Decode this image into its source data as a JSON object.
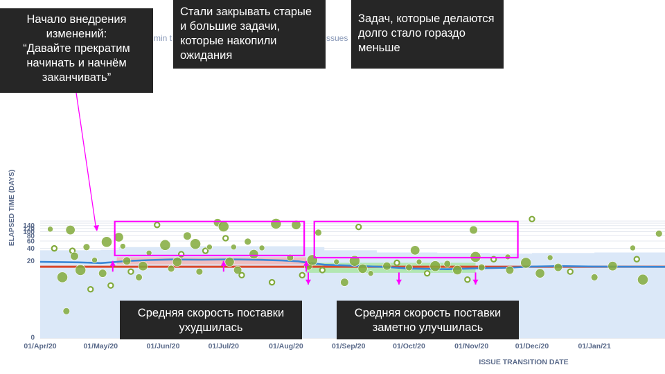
{
  "chart_data": {
    "type": "scatter",
    "title": "",
    "xlabel": "ISSUE TRANSITION DATE",
    "ylabel": "ELAPSED TIME (DAYS)",
    "y_scale": "log",
    "ylim": [
      0,
      180
    ],
    "xlim": [
      "2020-04-01",
      "2021-02-05"
    ],
    "x_ticks": [
      "01/Apr/20",
      "01/May/20",
      "01/Jun/20",
      "01/Jul/20",
      "01/Aug/20",
      "01/Sep/20",
      "01/Oct/20",
      "01/Nov/20",
      "01/Dec/20",
      "01/Jan/21"
    ],
    "y_ticks": [
      "0",
      "20",
      "40",
      "60",
      "80",
      "100",
      "120",
      "140"
    ],
    "grid": true,
    "header_fragments": [
      "min t",
      "ssues"
    ],
    "series": [
      {
        "kind": "average_line",
        "color": "#d9472b",
        "value": 14.5
      },
      {
        "kind": "rolling_average",
        "color": "#3a87d6",
        "points": [
          [
            "2020-04-01",
            19
          ],
          [
            "2020-04-20",
            18.5
          ],
          [
            "2020-05-01",
            17.8
          ],
          [
            "2020-05-07",
            18.6
          ],
          [
            "2020-05-15",
            20
          ],
          [
            "2020-05-25",
            21
          ],
          [
            "2020-06-05",
            21.6
          ],
          [
            "2020-06-20",
            21.4
          ],
          [
            "2020-07-05",
            21.8
          ],
          [
            "2020-07-20",
            21.2
          ],
          [
            "2020-07-30",
            20.5
          ],
          [
            "2020-08-07",
            19.6
          ],
          [
            "2020-08-13",
            17.8
          ],
          [
            "2020-08-20",
            16.2
          ],
          [
            "2020-09-05",
            15.2
          ],
          [
            "2020-09-20",
            14.2
          ],
          [
            "2020-10-01",
            13.1
          ],
          [
            "2020-10-20",
            12.6
          ],
          [
            "2020-11-05",
            13.3
          ],
          [
            "2020-11-20",
            13.8
          ],
          [
            "2020-12-01",
            14.6
          ],
          [
            "2020-12-15",
            15
          ],
          [
            "2021-01-01",
            14.6
          ],
          [
            "2021-02-05",
            14.4
          ]
        ]
      },
      {
        "kind": "std_dev_band",
        "color": "#dbe8f8",
        "points": [
          [
            "2020-04-01",
            0,
            36
          ],
          [
            "2020-05-01",
            0,
            37
          ],
          [
            "2020-05-10",
            0,
            43
          ],
          [
            "2020-06-15",
            0,
            45
          ],
          [
            "2020-07-20",
            0,
            45
          ],
          [
            "2020-08-10",
            0,
            43
          ],
          [
            "2020-08-20",
            0,
            36
          ],
          [
            "2020-09-15",
            0,
            32
          ],
          [
            "2020-10-15",
            0,
            31
          ],
          [
            "2020-11-10",
            0,
            30
          ],
          [
            "2020-12-01",
            0,
            31
          ],
          [
            "2021-01-01",
            0,
            32
          ],
          [
            "2021-02-05",
            0,
            33
          ]
        ]
      },
      {
        "kind": "issues",
        "color": "#82aa3c",
        "points": [
          [
            "2020-04-06",
            115
          ],
          [
            "2020-04-08",
            40
          ],
          [
            "2020-04-12",
            8
          ],
          [
            "2020-04-14",
            1
          ],
          [
            "2020-04-16",
            110
          ],
          [
            "2020-04-17",
            35
          ],
          [
            "2020-04-18",
            26
          ],
          [
            "2020-04-21",
            12
          ],
          [
            "2020-04-24",
            43
          ],
          [
            "2020-04-26",
            4
          ],
          [
            "2020-04-28",
            21
          ],
          [
            "2020-05-02",
            10
          ],
          [
            "2020-05-04",
            57
          ],
          [
            "2020-05-06",
            5
          ],
          [
            "2020-05-10",
            74
          ],
          [
            "2020-05-12",
            45
          ],
          [
            "2020-05-14",
            20
          ],
          [
            "2020-05-16",
            11
          ],
          [
            "2020-05-20",
            8
          ],
          [
            "2020-05-22",
            15
          ],
          [
            "2020-05-25",
            31
          ],
          [
            "2020-05-29",
            145
          ],
          [
            "2020-06-02",
            48
          ],
          [
            "2020-06-05",
            13
          ],
          [
            "2020-06-08",
            19
          ],
          [
            "2020-06-10",
            29
          ],
          [
            "2020-06-13",
            79
          ],
          [
            "2020-06-17",
            51
          ],
          [
            "2020-06-19",
            11
          ],
          [
            "2020-06-22",
            35
          ],
          [
            "2020-06-24",
            43
          ],
          [
            "2020-06-28",
            165
          ],
          [
            "2020-07-01",
            133
          ],
          [
            "2020-07-02",
            70
          ],
          [
            "2020-07-04",
            19
          ],
          [
            "2020-07-06",
            43
          ],
          [
            "2020-07-08",
            12
          ],
          [
            "2020-07-10",
            9
          ],
          [
            "2020-07-13",
            58
          ],
          [
            "2020-07-16",
            29
          ],
          [
            "2020-07-20",
            41
          ],
          [
            "2020-07-25",
            6
          ],
          [
            "2020-07-27",
            155
          ],
          [
            "2020-08-03",
            24
          ],
          [
            "2020-08-06",
            145
          ],
          [
            "2020-08-09",
            9
          ],
          [
            "2020-08-12",
            15
          ],
          [
            "2020-08-14",
            21
          ],
          [
            "2020-08-17",
            95
          ],
          [
            "2020-08-19",
            12
          ],
          [
            "2020-08-26",
            19
          ],
          [
            "2020-08-30",
            6
          ],
          [
            "2020-09-04",
            20
          ],
          [
            "2020-09-06",
            130
          ],
          [
            "2020-09-08",
            13
          ],
          [
            "2020-09-12",
            10
          ],
          [
            "2020-09-20",
            15
          ],
          [
            "2020-09-25",
            18
          ],
          [
            "2020-10-01",
            14
          ],
          [
            "2020-10-04",
            36
          ],
          [
            "2020-10-06",
            19
          ],
          [
            "2020-10-10",
            10
          ],
          [
            "2020-10-14",
            15
          ],
          [
            "2020-10-20",
            17
          ],
          [
            "2020-10-25",
            12
          ],
          [
            "2020-10-30",
            7
          ],
          [
            "2020-11-02",
            110
          ],
          [
            "2020-11-03",
            25
          ],
          [
            "2020-11-06",
            14
          ],
          [
            "2020-11-12",
            22
          ],
          [
            "2020-11-19",
            25
          ],
          [
            "2020-11-20",
            12
          ],
          [
            "2020-11-28",
            18
          ],
          [
            "2020-12-01",
            200
          ],
          [
            "2020-12-05",
            10
          ],
          [
            "2020-12-10",
            24
          ],
          [
            "2020-12-14",
            14
          ],
          [
            "2020-12-20",
            11
          ],
          [
            "2021-01-01",
            8
          ],
          [
            "2021-01-10",
            15
          ],
          [
            "2021-01-20",
            41
          ],
          [
            "2021-01-22",
            22
          ],
          [
            "2021-01-25",
            7
          ],
          [
            "2021-02-02",
            90
          ]
        ]
      }
    ]
  },
  "annotations": {
    "start": "Начало внедрения изменений:\n“Давайте прекратим начинать и начнём заканчивать”",
    "closed_old": "Стали закрывать старые и большие задачи, которые накопили ожидания",
    "fewer_long": "Задач, которые делаются долго стало гораздо меньше",
    "speed_worse": "Средняя скорость поставки ухудшилась",
    "speed_better": "Средняя скорость поставки заметно улучшилась"
  },
  "colors": {
    "highlight_box": "#ff00ff",
    "worse_band": "#f2b6b6",
    "better_band": "#a8e6a0",
    "axis_text": "#5a6a8a"
  }
}
